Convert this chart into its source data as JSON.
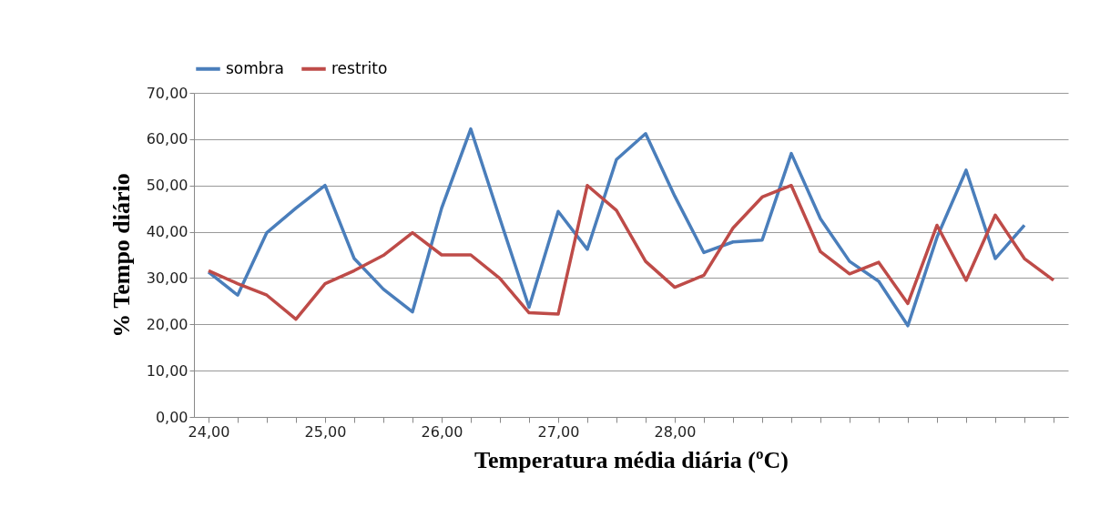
{
  "chart_data": {
    "type": "line",
    "xlabel": "Temperatura média diária (ºC)",
    "ylabel": "% Tempo diário",
    "categories": [
      "24,00",
      null,
      null,
      null,
      "25,00",
      null,
      null,
      null,
      "26,00",
      null,
      null,
      null,
      "27,00",
      null,
      null,
      null,
      "28,00",
      null,
      null,
      null,
      null,
      null,
      null,
      null,
      null,
      null,
      null,
      null,
      null,
      null
    ],
    "series": [
      {
        "name": "sombra",
        "color": "#4a7ebb",
        "values": [
          31.3,
          26.3,
          39.8,
          45.1,
          50.0,
          34.2,
          27.6,
          22.7,
          45.1,
          62.2,
          42.8,
          23.7,
          44.4,
          36.2,
          55.6,
          61.2,
          47.7,
          35.5,
          37.8,
          38.2,
          56.9,
          42.8,
          33.6,
          29.3,
          19.7,
          38.8,
          53.3,
          34.2,
          41.4,
          null
        ]
      },
      {
        "name": "restrito",
        "color": "#be4b48",
        "values": [
          31.6,
          28.8,
          26.3,
          21.1,
          28.8,
          31.6,
          34.9,
          39.8,
          35.0,
          35.0,
          29.9,
          22.5,
          22.2,
          50.0,
          44.6,
          33.6,
          28.0,
          30.6,
          40.8,
          47.5,
          50.0,
          35.7,
          30.9,
          33.4,
          24.5,
          41.4,
          29.5,
          43.6,
          34.2,
          29.5
        ]
      }
    ],
    "ylim": [
      0,
      70
    ],
    "yticks": [
      {
        "value": 0,
        "label": "0,00"
      },
      {
        "value": 10,
        "label": "10,00"
      },
      {
        "value": 20,
        "label": "20,00"
      },
      {
        "value": 30,
        "label": "30,00"
      },
      {
        "value": 40,
        "label": "40,00"
      },
      {
        "value": 50,
        "label": "50,00"
      },
      {
        "value": 60,
        "label": "60,00"
      },
      {
        "value": 70,
        "label": "70,00"
      }
    ],
    "grid": "y",
    "legend": "top",
    "marker": "none",
    "line_style": "solid"
  }
}
